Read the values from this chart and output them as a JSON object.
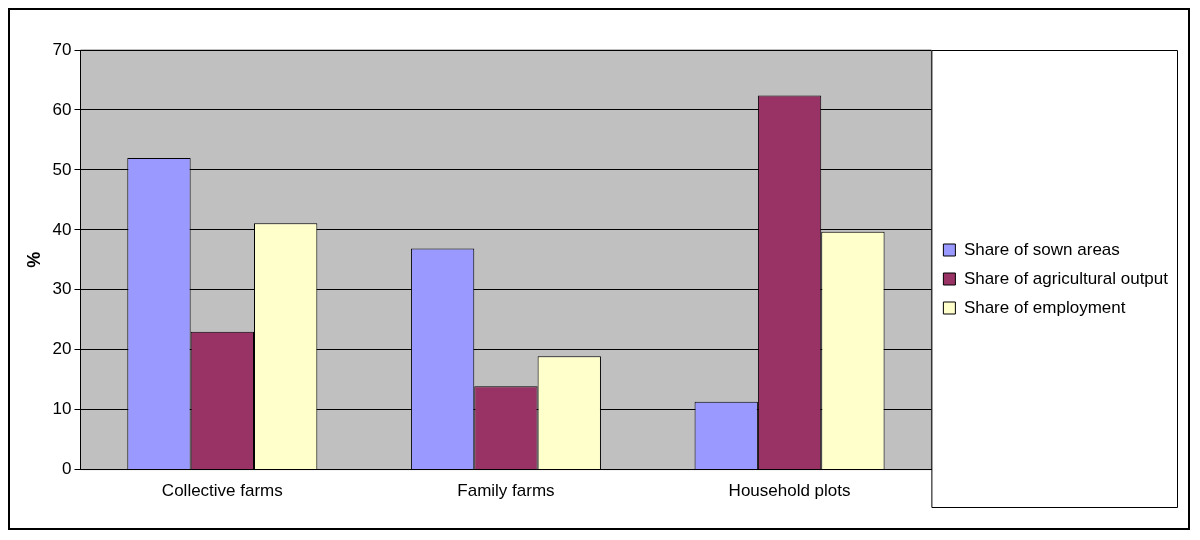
{
  "chart_data": {
    "type": "bar",
    "ylabel": "%",
    "categories": [
      "Collective farms",
      "Family farms",
      "Household plots"
    ],
    "series": [
      {
        "name": "Share of sown areas",
        "color": "#9999ff",
        "values": [
          52.0,
          36.9,
          11.3
        ]
      },
      {
        "name": "Share of agricultural output",
        "color": "#993366",
        "values": [
          23.0,
          13.9,
          62.4
        ]
      },
      {
        "name": "Share of employment",
        "color": "#ffffcc",
        "values": [
          41.1,
          18.9,
          39.7
        ]
      }
    ],
    "ylim": [
      0,
      70
    ],
    "yticks": [
      0,
      10,
      20,
      30,
      40,
      50,
      60,
      70
    ],
    "grid": "y",
    "legend": "right"
  }
}
